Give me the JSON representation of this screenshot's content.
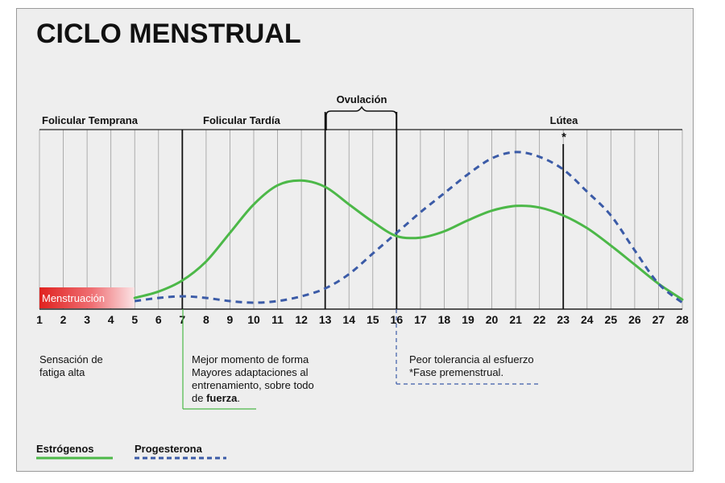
{
  "chart_data": {
    "type": "line",
    "title": "CICLO MENSTRUAL",
    "x": [
      1,
      2,
      3,
      4,
      5,
      6,
      7,
      8,
      9,
      10,
      11,
      12,
      13,
      14,
      15,
      16,
      17,
      18,
      19,
      20,
      21,
      22,
      23,
      24,
      25,
      26,
      27,
      28
    ],
    "xlim": [
      1,
      28
    ],
    "ylim": [
      0,
      1
    ],
    "grid": true,
    "phases": [
      {
        "label": "Folicular Temprana"
      },
      {
        "label": "Folicular Tardía"
      },
      {
        "label": "Lútea"
      }
    ],
    "ovulation": {
      "label": "Ovulación",
      "start_day": 13,
      "end_day": 16
    },
    "marker": {
      "label": "*",
      "day": 23
    },
    "menstruation": {
      "label": "Menstruación",
      "start_day": 1,
      "end_day": 5
    },
    "series": [
      {
        "name": "Estrógenos",
        "color": "#4cb848",
        "style": "solid",
        "x": [
          5,
          6,
          7,
          8,
          9,
          10,
          11,
          12,
          13,
          14,
          15,
          16,
          17,
          18,
          19,
          20,
          21,
          22,
          23,
          24,
          25,
          26,
          27,
          28
        ],
        "y": [
          0.03,
          0.07,
          0.14,
          0.26,
          0.44,
          0.62,
          0.74,
          0.77,
          0.73,
          0.62,
          0.51,
          0.42,
          0.41,
          0.45,
          0.52,
          0.58,
          0.61,
          0.6,
          0.55,
          0.47,
          0.36,
          0.24,
          0.12,
          0.02
        ]
      },
      {
        "name": "Progesterona",
        "color": "#3b5ba7",
        "style": "dashed",
        "x": [
          5,
          6,
          7,
          8,
          9,
          10,
          11,
          12,
          13,
          14,
          15,
          16,
          17,
          18,
          19,
          20,
          21,
          22,
          23,
          24,
          25,
          26,
          27,
          28
        ],
        "y": [
          0.01,
          0.03,
          0.04,
          0.03,
          0.01,
          0.0,
          0.01,
          0.04,
          0.09,
          0.18,
          0.31,
          0.44,
          0.57,
          0.69,
          0.81,
          0.91,
          0.95,
          0.92,
          0.84,
          0.7,
          0.55,
          0.33,
          0.12,
          0.0
        ]
      }
    ],
    "annotations": [
      {
        "lines": [
          "Sensación de",
          "fatiga alta"
        ]
      },
      {
        "lines": [
          "Mejor momento de forma",
          "Mayores adaptaciones al",
          "entrenamiento, sobre todo"
        ],
        "last_line_bold": "fuerza",
        "last_line_prefix": "de ",
        "last_line_suffix": "."
      },
      {
        "lines": [
          "Peor tolerancia al esfuerzo",
          "*Fase premenstrual."
        ]
      }
    ]
  },
  "legend": {
    "items": [
      {
        "label": "Estrógenos",
        "color": "#4cb848",
        "style": "solid"
      },
      {
        "label": "Progesterona",
        "color": "#3b5ba7",
        "style": "dashed"
      }
    ]
  }
}
